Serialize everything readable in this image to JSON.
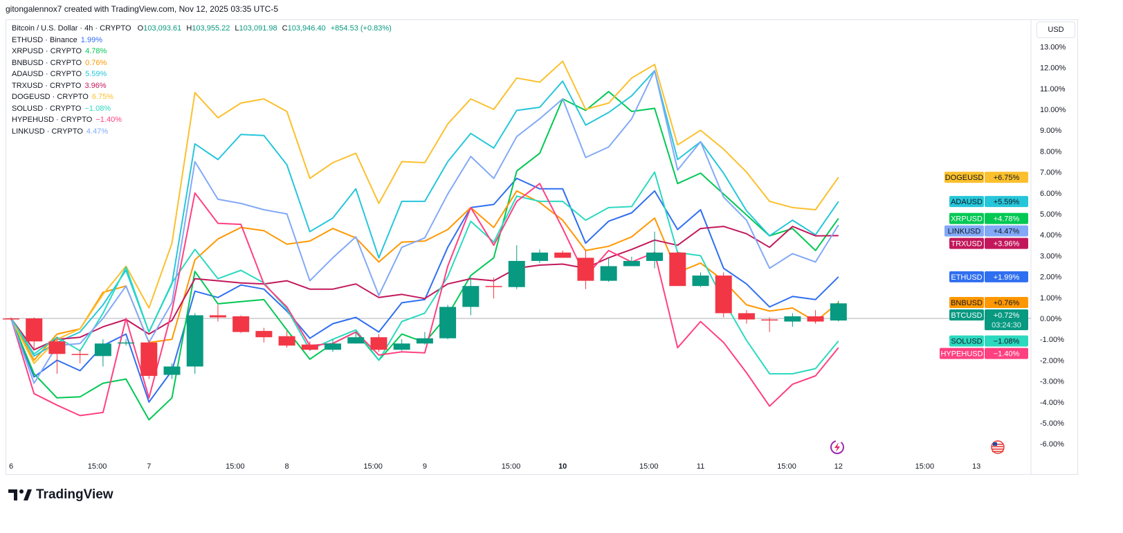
{
  "credit": "gitongalennox7 created with TradingView.com, Nov 12, 2025 03:35 UTC-5",
  "currency_button": "USD",
  "main_symbol": {
    "title": "Bitcoin / U.S. Dollar · 4h · CRYPTO",
    "open_label": "O",
    "open": "103,093.61",
    "high_label": "H",
    "high": "103,955.22",
    "low_label": "L",
    "low": "103,091.98",
    "close_label": "C",
    "close": "103,946.40",
    "change": "+854.53 (+0.83%)"
  },
  "footer_brand": "TradingView",
  "icons": [
    "tradingview-logo-icon",
    "lightning-icon",
    "us-flag-icon"
  ],
  "chart_data": {
    "type": "line",
    "ylim": [
      -6.5,
      13.5
    ],
    "y_ticks": [
      "13.00%",
      "12.00%",
      "11.00%",
      "10.00%",
      "9.00%",
      "8.00%",
      "7.00%",
      "6.00%",
      "5.00%",
      "4.00%",
      "3.00%",
      "2.00%",
      "1.00%",
      "0.00%",
      "-1.00%",
      "-2.00%",
      "-3.00%",
      "-4.00%",
      "-5.00%",
      "-6.00%"
    ],
    "y_tick_values": [
      13,
      12,
      11,
      10,
      9,
      8,
      7,
      6,
      5,
      4,
      3,
      2,
      1,
      0,
      -1,
      -2,
      -3,
      -4,
      -5,
      -6
    ],
    "x_ticks": [
      {
        "label": "6",
        "t": 0
      },
      {
        "label": "15:00",
        "t": 15
      },
      {
        "label": "7",
        "t": 24
      },
      {
        "label": "15:00",
        "t": 39
      },
      {
        "label": "8",
        "t": 48
      },
      {
        "label": "15:00",
        "t": 63
      },
      {
        "label": "9",
        "t": 72
      },
      {
        "label": "15:00",
        "t": 87
      },
      {
        "label": "10",
        "t": 96,
        "bold": true
      },
      {
        "label": "15:00",
        "t": 111
      },
      {
        "label": "11",
        "t": 120
      },
      {
        "label": "15:00",
        "t": 135
      },
      {
        "label": "12",
        "t": 144
      },
      {
        "label": "15:00",
        "t": 159
      },
      {
        "label": "13",
        "t": 168
      }
    ],
    "x_interval_hours": 4,
    "x_range_hours": [
      0,
      172
    ],
    "main": {
      "name": "BTCUSD",
      "label_value": "+0.72%",
      "countdown": "03:24:30",
      "up_color": "#089981",
      "down_color": "#f23645",
      "ohlc": [
        [
          0,
          0.05,
          -0.1,
          -0.05
        ],
        [
          0,
          0.05,
          -1.5,
          -1.1
        ],
        [
          -1.1,
          -0.9,
          -2.65,
          -1.7
        ],
        [
          -1.7,
          -1.5,
          -2.15,
          -1.75
        ],
        [
          -1.8,
          -1.0,
          -2.3,
          -1.2
        ],
        [
          -1.2,
          -1.0,
          -1.3,
          -1.15
        ],
        [
          -1.15,
          -1.05,
          -2.9,
          -2.75
        ],
        [
          -2.7,
          -2.15,
          -2.9,
          -2.3
        ],
        [
          -2.3,
          0.25,
          -2.65,
          0.15
        ],
        [
          0.15,
          0.65,
          -0.15,
          0.05
        ],
        [
          0.1,
          0.15,
          -0.7,
          -0.65
        ],
        [
          -0.6,
          -0.45,
          -1.15,
          -0.9
        ],
        [
          -0.85,
          -0.6,
          -1.4,
          -1.3
        ],
        [
          -1.25,
          -1.1,
          -1.55,
          -1.5
        ],
        [
          -1.5,
          -1.0,
          -1.6,
          -1.2
        ],
        [
          -1.2,
          -0.65,
          -1.2,
          -0.9
        ],
        [
          -0.9,
          -0.75,
          -1.6,
          -1.5
        ],
        [
          -1.5,
          -1.0,
          -1.55,
          -1.2
        ],
        [
          -1.2,
          -0.65,
          -1.25,
          -0.95
        ],
        [
          -0.95,
          0.65,
          -1.0,
          0.55
        ],
        [
          0.55,
          1.95,
          0.15,
          1.55
        ],
        [
          1.55,
          1.95,
          0.95,
          1.5
        ],
        [
          1.5,
          3.5,
          1.4,
          2.75
        ],
        [
          2.75,
          3.3,
          2.65,
          3.15
        ],
        [
          3.15,
          3.25,
          2.9,
          2.9
        ],
        [
          2.9,
          3.25,
          1.4,
          1.8
        ],
        [
          1.8,
          2.9,
          1.75,
          2.5
        ],
        [
          2.5,
          2.95,
          2.5,
          2.75
        ],
        [
          2.75,
          4.15,
          2.4,
          3.15
        ],
        [
          3.15,
          3.2,
          1.55,
          1.55
        ],
        [
          1.55,
          2.2,
          1.5,
          2.05
        ],
        [
          2.05,
          2.2,
          0.05,
          0.25
        ],
        [
          0.25,
          0.4,
          -0.25,
          -0.05
        ],
        [
          -0.05,
          0.05,
          -0.65,
          -0.1
        ],
        [
          -0.15,
          0.25,
          -0.4,
          0.1
        ],
        [
          0.1,
          0.4,
          -0.25,
          -0.15
        ],
        [
          -0.1,
          0.85,
          -0.15,
          0.72
        ]
      ]
    },
    "series": [
      {
        "name": "ETHUSD",
        "source": "Binance",
        "legend_value": "1.99%",
        "label_value": "+1.99%",
        "color": "#2f6ff0",
        "label_text_color": "#ffffff",
        "values": [
          0,
          -2.8,
          -2.0,
          -2.5,
          -1.3,
          -0.75,
          -4.0,
          -2.5,
          1.3,
          1.0,
          1.6,
          1.4,
          0.35,
          -0.95,
          -0.25,
          0.05,
          -0.65,
          0.75,
          0.9,
          3.4,
          5.3,
          5.45,
          6.7,
          6.2,
          6.2,
          3.6,
          4.65,
          5.05,
          6.1,
          4.25,
          5.2,
          2.4,
          1.65,
          0.55,
          1.05,
          0.9,
          1.99
        ]
      },
      {
        "name": "XRPUSD",
        "source": "CRYPTO",
        "legend_value": "4.78%",
        "label_value": "+4.78%",
        "color": "#00c853",
        "label_text_color": "#ffffff",
        "values": [
          0,
          -2.65,
          -3.8,
          -3.75,
          -3.1,
          -2.9,
          -4.85,
          -3.8,
          2.25,
          0.7,
          0.8,
          0.9,
          -0.55,
          -1.95,
          -1.2,
          -0.65,
          -2.0,
          -0.75,
          -1.15,
          0.15,
          2.05,
          2.9,
          7.05,
          7.9,
          10.5,
          9.95,
          10.85,
          9.9,
          10.05,
          6.45,
          6.95,
          5.95,
          4.95,
          3.95,
          4.3,
          3.25,
          4.78
        ]
      },
      {
        "name": "BNBUSD",
        "source": "CRYPTO",
        "legend_value": "0.76%",
        "label_value": "+0.76%",
        "color": "#ff9800",
        "label_text_color": "#131722",
        "values": [
          0,
          -2.0,
          -0.75,
          -0.5,
          1.25,
          1.55,
          -1.15,
          -1.0,
          2.8,
          3.8,
          4.35,
          4.2,
          3.55,
          3.7,
          4.3,
          3.85,
          2.7,
          3.65,
          3.7,
          4.25,
          5.3,
          4.35,
          6.1,
          5.55,
          4.7,
          3.25,
          3.45,
          3.9,
          4.8,
          2.2,
          2.65,
          1.8,
          0.65,
          0.35,
          0.5,
          -0.15,
          0.76
        ]
      },
      {
        "name": "ADAUSD",
        "source": "CRYPTO",
        "legend_value": "5.59%",
        "label_value": "+5.59%",
        "color": "#26c6da",
        "label_text_color": "#131722",
        "values": [
          0,
          -1.8,
          -1.15,
          -0.65,
          0.65,
          2.3,
          -0.65,
          1.65,
          8.35,
          7.6,
          8.8,
          8.75,
          7.35,
          4.15,
          4.8,
          6.2,
          2.9,
          5.6,
          5.6,
          7.5,
          8.85,
          8.15,
          9.95,
          10.1,
          11.35,
          9.25,
          9.85,
          10.65,
          11.85,
          7.6,
          8.45,
          6.95,
          5.15,
          3.95,
          4.7,
          4.0,
          5.59
        ]
      },
      {
        "name": "TRXUSD",
        "source": "CRYPTO",
        "legend_value": "3.96%",
        "label_value": "+3.96%",
        "color": "#c2185b",
        "label_text_color": "#ffffff",
        "values": [
          0,
          -1.5,
          -1.0,
          -0.9,
          -0.4,
          -0.05,
          -0.75,
          -0.1,
          1.9,
          1.8,
          1.7,
          1.65,
          1.8,
          1.4,
          1.4,
          1.65,
          1.0,
          1.15,
          0.95,
          1.65,
          1.9,
          1.8,
          2.4,
          2.55,
          2.6,
          2.4,
          2.9,
          3.3,
          3.75,
          3.5,
          4.3,
          4.4,
          4.05,
          3.4,
          4.4,
          3.95,
          3.96
        ]
      },
      {
        "name": "DOGEUSD",
        "source": "CRYPTO",
        "legend_value": "6.75%",
        "label_value": "+6.75%",
        "color": "#fbc02d",
        "label_text_color": "#131722",
        "values": [
          0,
          -2.15,
          -1.0,
          -0.5,
          1.15,
          2.5,
          0.5,
          3.6,
          10.8,
          9.6,
          10.3,
          10.5,
          9.9,
          6.7,
          7.45,
          7.9,
          5.5,
          7.5,
          7.45,
          9.3,
          10.5,
          10.0,
          11.5,
          11.3,
          12.3,
          10.0,
          10.3,
          11.5,
          12.15,
          8.3,
          9.0,
          8.1,
          7.0,
          5.6,
          5.3,
          5.2,
          6.75
        ]
      },
      {
        "name": "SOLUSD",
        "source": "CRYPTO",
        "legend_value": "−1.08%",
        "label_value": "−1.08%",
        "color": "#2bd9bf",
        "label_text_color": "#131722",
        "values": [
          0,
          -1.7,
          -0.9,
          -1.55,
          0.25,
          2.45,
          -0.65,
          1.7,
          3.3,
          1.9,
          2.3,
          1.7,
          0.45,
          -1.5,
          -1.0,
          -0.55,
          -2.0,
          -0.15,
          0.25,
          2.0,
          4.65,
          3.65,
          5.85,
          5.6,
          5.6,
          4.7,
          5.3,
          5.35,
          7.0,
          3.15,
          3.0,
          0.85,
          -1.05,
          -2.65,
          -2.65,
          -2.4,
          -1.08
        ]
      },
      {
        "name": "HYPEHUSD",
        "source": "CRYPTO",
        "legend_value": "−1.40%",
        "label_value": "−1.40%",
        "color": "#ff4081",
        "label_text_color": "#ffffff",
        "values": [
          0,
          -3.6,
          -4.15,
          -4.65,
          -4.5,
          0,
          -3.8,
          0.35,
          6.0,
          4.55,
          4.5,
          1.65,
          0.55,
          -1.3,
          -1.2,
          -0.65,
          -1.75,
          -1.6,
          -1.65,
          2.5,
          5.3,
          3.5,
          5.6,
          6.45,
          4.3,
          2.0,
          3.25,
          2.7,
          3.15,
          -1.4,
          -0.15,
          -1.15,
          -2.6,
          -4.2,
          -3.15,
          -2.75,
          -1.4
        ]
      },
      {
        "name": "LINKUSD",
        "source": "CRYPTO",
        "legend_value": "4.47%",
        "label_value": "+4.47%",
        "color": "#82a9f7",
        "label_text_color": "#131722",
        "values": [
          0,
          -3.1,
          -1.3,
          -1.2,
          0,
          1.55,
          -1.15,
          0.75,
          7.5,
          5.7,
          5.5,
          5.2,
          5.0,
          1.8,
          2.9,
          3.9,
          1.1,
          3.4,
          3.85,
          5.95,
          7.75,
          6.7,
          8.7,
          9.55,
          10.5,
          7.7,
          8.2,
          9.55,
          11.85,
          7.1,
          8.45,
          5.8,
          4.7,
          2.4,
          3.1,
          2.7,
          4.47
        ]
      }
    ]
  }
}
